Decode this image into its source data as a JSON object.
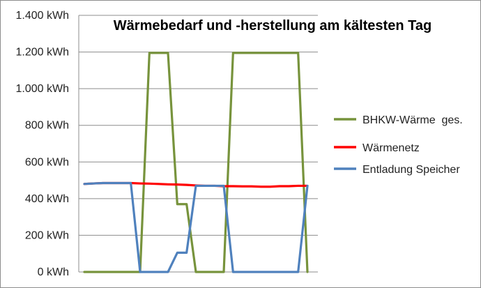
{
  "chart_data": {
    "type": "line",
    "title": "Wärmebedarf und -herstellung am kältesten Tag",
    "xlabel": "",
    "ylabel": "",
    "ylim": [
      0,
      1400
    ],
    "yticks": [
      {
        "value": 0,
        "label": "0 kWh"
      },
      {
        "value": 200,
        "label": "200 kWh"
      },
      {
        "value": 400,
        "label": "400 kWh"
      },
      {
        "value": 600,
        "label": "600 kWh"
      },
      {
        "value": 800,
        "label": "800 kWh"
      },
      {
        "value": 1000,
        "label": "1.000 kWh"
      },
      {
        "value": 1200,
        "label": "1.200 kWh"
      },
      {
        "value": 1400,
        "label": "1.400 kWh"
      }
    ],
    "x": [
      1,
      2,
      3,
      4,
      5,
      6,
      7,
      8,
      9,
      10,
      11,
      12,
      13,
      14,
      15,
      16,
      17,
      18,
      19,
      20,
      21,
      22,
      23,
      24,
      25
    ],
    "grid": true,
    "legend_position": "right",
    "series": [
      {
        "name": "BHKW-Wärme  ges.",
        "color": "#77933c",
        "values": [
          0,
          0,
          0,
          0,
          0,
          0,
          0,
          1195,
          1195,
          1195,
          370,
          370,
          0,
          0,
          0,
          0,
          1195,
          1195,
          1195,
          1195,
          1195,
          1195,
          1195,
          1195,
          0
        ]
      },
      {
        "name": "Wärmenetz",
        "color": "#ff0000",
        "values": [
          480,
          483,
          485,
          485,
          485,
          485,
          483,
          482,
          480,
          478,
          477,
          475,
          472,
          470,
          470,
          468,
          468,
          467,
          467,
          465,
          465,
          468,
          468,
          470,
          470
        ]
      },
      {
        "name": "Entladung Speicher",
        "color": "#4f81bd",
        "values": [
          480,
          483,
          485,
          485,
          485,
          485,
          0,
          0,
          0,
          0,
          105,
          105,
          470,
          470,
          470,
          470,
          0,
          0,
          0,
          0,
          0,
          0,
          0,
          0,
          470
        ]
      }
    ]
  }
}
